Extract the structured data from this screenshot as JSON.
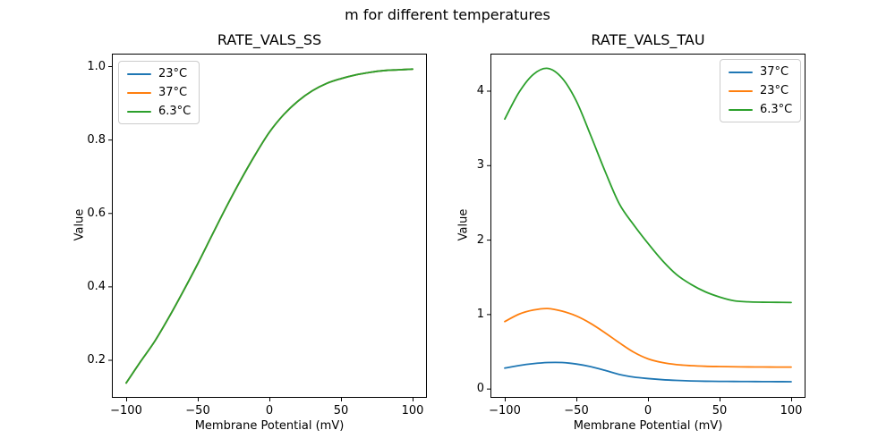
{
  "figure": {
    "suptitle": "m for different temperatures",
    "background_color": "#ffffff",
    "axes_color": "#000000"
  },
  "palette": {
    "blue": "#1f77b4",
    "orange": "#ff7f0e",
    "green": "#2ca02c",
    "legend_border": "#cccccc"
  },
  "chart_data": [
    {
      "type": "line",
      "title": "RATE_VALS_SS",
      "xlabel": "Membrane Potential (mV)",
      "ylabel": "Value",
      "grid": false,
      "legend_position": "upper-left",
      "xlim": [
        -110,
        110
      ],
      "ylim": [
        0.0965,
        1.0341
      ],
      "xticks": {
        "values": [
          -100,
          -50,
          0,
          50,
          100
        ],
        "labels": [
          "−100",
          "−50",
          "0",
          "50",
          "100"
        ]
      },
      "yticks": {
        "values": [
          0.2,
          0.4,
          0.6,
          0.8,
          1.0
        ],
        "labels": [
          "0.2",
          "0.4",
          "0.6",
          "0.8",
          "1.0"
        ]
      },
      "note": "All three temperature curves are identical and overlap; green (drawn last) is visible",
      "x": [
        -100,
        -90,
        -80,
        -70,
        -60,
        -50,
        -40,
        -30,
        -20,
        -10,
        0,
        10,
        20,
        30,
        40,
        50,
        60,
        70,
        80,
        90,
        100
      ],
      "series": [
        {
          "name": "23°C",
          "color": "#1f77b4",
          "values": [
            0.137,
            0.195,
            0.251,
            0.317,
            0.388,
            0.462,
            0.54,
            0.617,
            0.69,
            0.758,
            0.82,
            0.868,
            0.905,
            0.933,
            0.953,
            0.966,
            0.976,
            0.983,
            0.988,
            0.99,
            0.992
          ]
        },
        {
          "name": "37°C",
          "color": "#ff7f0e",
          "values": [
            0.137,
            0.195,
            0.251,
            0.317,
            0.388,
            0.462,
            0.54,
            0.617,
            0.69,
            0.758,
            0.82,
            0.868,
            0.905,
            0.933,
            0.953,
            0.966,
            0.976,
            0.983,
            0.988,
            0.99,
            0.992
          ]
        },
        {
          "name": "6.3°C",
          "color": "#2ca02c",
          "values": [
            0.137,
            0.195,
            0.251,
            0.317,
            0.388,
            0.462,
            0.54,
            0.617,
            0.69,
            0.758,
            0.82,
            0.868,
            0.905,
            0.933,
            0.953,
            0.966,
            0.976,
            0.983,
            0.988,
            0.99,
            0.992
          ]
        }
      ]
    },
    {
      "type": "line",
      "title": "RATE_VALS_TAU",
      "xlabel": "Membrane Potential (mV)",
      "ylabel": "Value",
      "grid": false,
      "legend_position": "upper-right",
      "xlim": [
        -110,
        110
      ],
      "ylim": [
        -0.124,
        4.498
      ],
      "xticks": {
        "values": [
          -100,
          -50,
          0,
          50,
          100
        ],
        "labels": [
          "−100",
          "−50",
          "0",
          "50",
          "100"
        ]
      },
      "yticks": {
        "values": [
          0,
          1,
          2,
          3,
          4
        ],
        "labels": [
          "0",
          "1",
          "2",
          "3",
          "4"
        ]
      },
      "x": [
        -100,
        -90,
        -80,
        -70,
        -60,
        -50,
        -40,
        -30,
        -20,
        -10,
        0,
        10,
        20,
        30,
        40,
        50,
        60,
        70,
        80,
        90,
        100
      ],
      "series": [
        {
          "name": "37°C",
          "color": "#1f77b4",
          "values": [
            0.275,
            0.31,
            0.335,
            0.35,
            0.35,
            0.33,
            0.295,
            0.245,
            0.19,
            0.155,
            0.135,
            0.12,
            0.11,
            0.103,
            0.099,
            0.097,
            0.096,
            0.095,
            0.094,
            0.093,
            0.092
          ]
        },
        {
          "name": "23°C",
          "color": "#ff7f0e",
          "values": [
            0.9,
            1.0,
            1.055,
            1.075,
            1.04,
            0.975,
            0.875,
            0.75,
            0.615,
            0.49,
            0.4,
            0.35,
            0.322,
            0.308,
            0.3,
            0.296,
            0.293,
            0.291,
            0.29,
            0.289,
            0.289
          ]
        },
        {
          "name": "6.3°C",
          "color": "#2ca02c",
          "values": [
            3.62,
            3.98,
            4.22,
            4.3,
            4.17,
            3.86,
            3.4,
            2.92,
            2.48,
            2.2,
            1.95,
            1.72,
            1.53,
            1.4,
            1.3,
            1.23,
            1.18,
            1.165,
            1.16,
            1.158,
            1.156
          ]
        }
      ]
    }
  ]
}
